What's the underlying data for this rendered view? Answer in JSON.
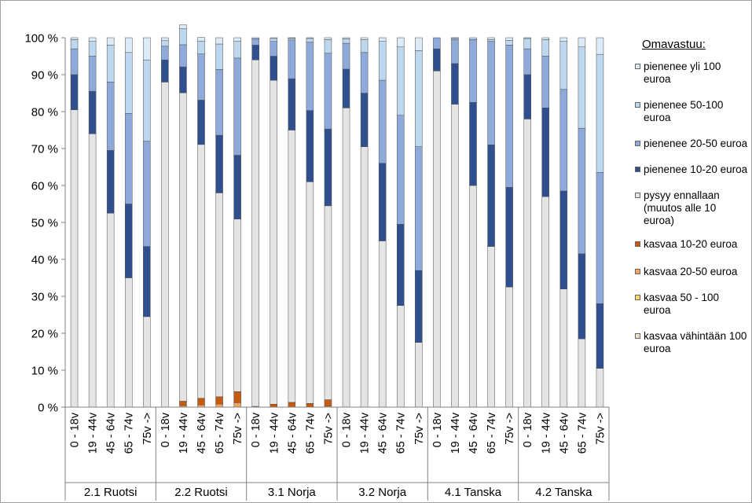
{
  "chart_data": {
    "type": "bar",
    "stacked": "percent",
    "ylim": [
      0,
      100
    ],
    "yticks": [
      "0 %",
      "10 %",
      "20 %",
      "30 %",
      "40 %",
      "50 %",
      "60 %",
      "70 %",
      "80 %",
      "90 %",
      "100 %"
    ],
    "categories": [
      "0 - 18v",
      "19 - 44v",
      "45 - 64v",
      "65 - 74v",
      "75v ->"
    ],
    "groups": [
      "2.1 Ruotsi",
      "2.2 Ruotsi",
      "3.1 Norja",
      "3.2 Norja",
      "4.1 Tanska",
      "4.2 Tanska"
    ],
    "legend_title": "Omavastuu:",
    "series": [
      {
        "name": "kasvaa vähintään 100 euroa",
        "color": "#f2dcc8",
        "values": [
          [
            0,
            0,
            0,
            0,
            0
          ],
          [
            0,
            0,
            0,
            0,
            0
          ],
          [
            0,
            0,
            0,
            0,
            0
          ],
          [
            0,
            0,
            0,
            0,
            0
          ],
          [
            0,
            0,
            0,
            0,
            0
          ],
          [
            0,
            0,
            0,
            0,
            0
          ]
        ]
      },
      {
        "name": "kasvaa 50 - 100 euroa",
        "color": "#ffd966",
        "values": [
          [
            0,
            0,
            0,
            0,
            0
          ],
          [
            0,
            0,
            0,
            0,
            0
          ],
          [
            0,
            0,
            0,
            0,
            0
          ],
          [
            0,
            0,
            0,
            0,
            0
          ],
          [
            0,
            0,
            0,
            0,
            0
          ],
          [
            0,
            0,
            0,
            0,
            0
          ]
        ]
      },
      {
        "name": "kasvaa 20-50 euroa",
        "color": "#f4a460",
        "values": [
          [
            0,
            0,
            0,
            0,
            0
          ],
          [
            0,
            0.4,
            0.6,
            0.8,
            1.2
          ],
          [
            0,
            0,
            0,
            0,
            0.3
          ],
          [
            0,
            0,
            0,
            0,
            0
          ],
          [
            0,
            0,
            0,
            0,
            0
          ],
          [
            0,
            0,
            0,
            0,
            0
          ]
        ]
      },
      {
        "name": "kasvaa 10-20 euroa",
        "color": "#c55a11",
        "values": [
          [
            0,
            0,
            0,
            0,
            0
          ],
          [
            0,
            1.2,
            1.8,
            2.0,
            3.0
          ],
          [
            0.2,
            0.8,
            1.3,
            1.0,
            1.7
          ],
          [
            0,
            0,
            0,
            0,
            0
          ],
          [
            0,
            0,
            0,
            0,
            0
          ],
          [
            0,
            0,
            0,
            0,
            0
          ]
        ]
      },
      {
        "name": "pysyy ennallaan (muutos alle 10 euroa)",
        "color": "#e4e4e4",
        "values": [
          [
            80.5,
            74,
            52.5,
            35,
            24.5
          ],
          [
            88,
            83.5,
            68.7,
            55.2,
            46.7
          ],
          [
            93.8,
            87.7,
            73.7,
            60,
            52.5
          ],
          [
            81,
            70.5,
            45,
            27.5,
            17.5
          ],
          [
            91,
            82,
            60,
            43.5,
            32.5
          ],
          [
            78,
            57,
            32,
            18.5,
            10.5
          ]
        ]
      },
      {
        "name": "pienenee 10-20 euroa",
        "color": "#2f4f8f",
        "values": [
          [
            9.5,
            11.5,
            17,
            20,
            19
          ],
          [
            6,
            7,
            12,
            15.6,
            17.3
          ],
          [
            4,
            6.5,
            13.9,
            19.3,
            20.8
          ],
          [
            10.5,
            14.5,
            21,
            22,
            19.5
          ],
          [
            6,
            11,
            22.5,
            27.5,
            27
          ],
          [
            12,
            24,
            26.5,
            23,
            17.5
          ]
        ]
      },
      {
        "name": "pienenee 20-50 euroa",
        "color": "#8eaadb",
        "values": [
          [
            7,
            9.5,
            18.5,
            24.5,
            28.5
          ],
          [
            3.7,
            6,
            12.5,
            17.8,
            26.3
          ],
          [
            1.7,
            4,
            10.5,
            18.5,
            20.5
          ],
          [
            7,
            11,
            22.5,
            29.5,
            33.5
          ],
          [
            3,
            6.5,
            17,
            28,
            38.5
          ],
          [
            7,
            14,
            27.5,
            34,
            35.5
          ]
        ]
      },
      {
        "name": "pienenee 50-100 euroa",
        "color": "#bdd7ee",
        "values": [
          [
            2.5,
            4,
            10,
            16.5,
            22
          ],
          [
            1.5,
            4.4,
            3.5,
            6.9,
            4.5
          ],
          [
            0.3,
            0.8,
            0.5,
            1,
            3.7
          ],
          [
            1.2,
            3.5,
            10.5,
            18.5,
            26
          ],
          [
            0,
            0.4,
            0.5,
            0.5,
            1.3
          ],
          [
            2.8,
            4.5,
            13,
            22,
            32
          ]
        ]
      },
      {
        "name": "pienenee yli 100 euroa",
        "color": "#ddebf7",
        "values": [
          [
            0.5,
            1,
            2,
            4,
            6
          ],
          [
            0.8,
            1,
            1,
            1.7,
            1
          ],
          [
            0,
            0.2,
            0.1,
            0.2,
            0.5
          ],
          [
            0.3,
            0.5,
            1,
            2.5,
            3.5
          ],
          [
            0,
            0.1,
            0,
            0.5,
            0.7
          ],
          [
            0.2,
            0.5,
            1,
            2.5,
            4.5
          ]
        ]
      }
    ]
  }
}
